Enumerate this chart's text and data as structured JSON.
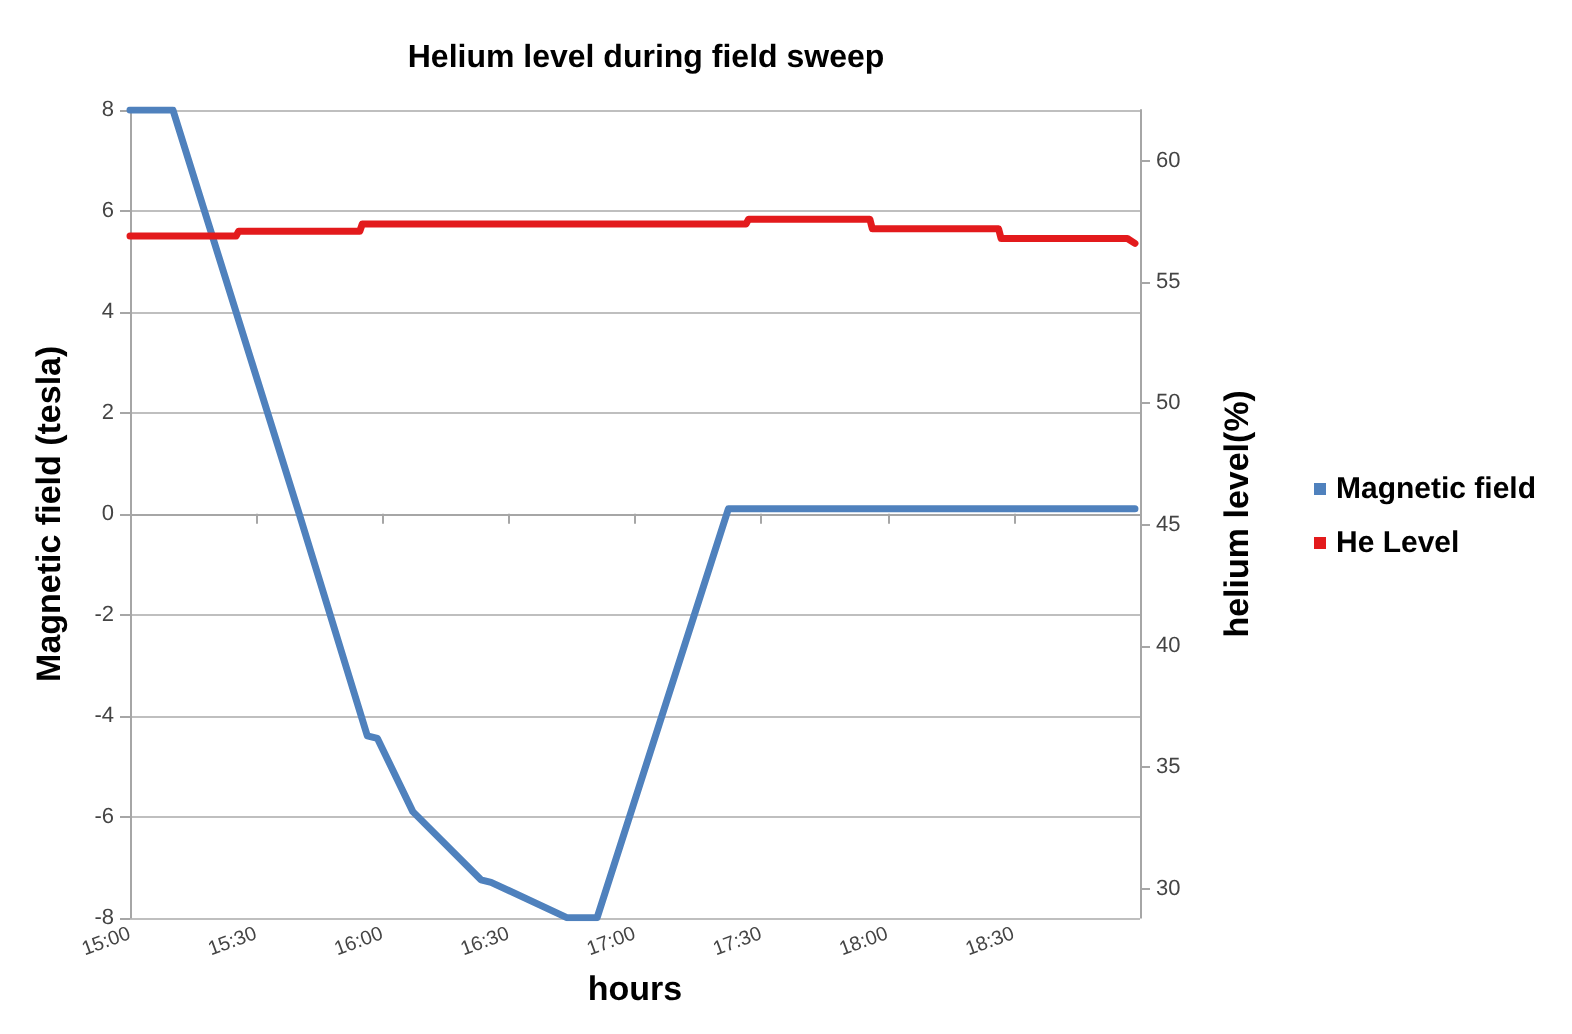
{
  "chart_data": {
    "type": "line",
    "title": "Helium level during field sweep",
    "xlabel": "hours",
    "ylabel": "Magnetic field (tesla)",
    "y2label": "helium level(%)",
    "xlim": [
      15,
      19
    ],
    "xticks": [
      {
        "value": 15,
        "label": "15:00"
      },
      {
        "value": 15.5,
        "label": "15:30"
      },
      {
        "value": 16,
        "label": "16:00"
      },
      {
        "value": 16.5,
        "label": "16:30"
      },
      {
        "value": 17,
        "label": "17:00"
      },
      {
        "value": 17.5,
        "label": "17:30"
      },
      {
        "value": 18,
        "label": "18:00"
      },
      {
        "value": 18.5,
        "label": "18:30"
      }
    ],
    "ylim": [
      -8,
      8
    ],
    "yticks": [
      -8,
      -6,
      -4,
      -2,
      0,
      2,
      4,
      6,
      8
    ],
    "y2lim": [
      28.8,
      62.1
    ],
    "y2ticks": [
      30,
      35,
      40,
      45,
      50,
      55,
      60
    ],
    "grid": "y",
    "legend": "right",
    "marker": "none",
    "line_style": "solid",
    "series": [
      {
        "name": "Magnetic field",
        "color": "#4f81bd",
        "x": [
          15,
          15.17,
          15.67,
          15.94,
          15.98,
          16.12,
          16.39,
          16.43,
          16.73,
          16.85,
          17.37,
          18.98
        ],
        "values": [
          8,
          8,
          0,
          -4.4,
          -4.45,
          -5.9,
          -7.25,
          -7.3,
          -8,
          -8,
          0.1,
          0.1
        ]
      },
      {
        "name": "He Level",
        "color": "#e31a1c",
        "axis": "y2",
        "x": [
          15,
          15.42,
          15.43,
          15.91,
          15.92,
          16.44,
          16.45,
          17.44,
          17.45,
          17.93,
          17.94,
          18.44,
          18.45,
          18.95,
          18.98
        ],
        "values": [
          56.9,
          56.9,
          57.1,
          57.1,
          57.4,
          57.4,
          57.4,
          57.4,
          57.6,
          57.6,
          57.2,
          57.2,
          56.8,
          56.8,
          56.6
        ]
      }
    ]
  }
}
